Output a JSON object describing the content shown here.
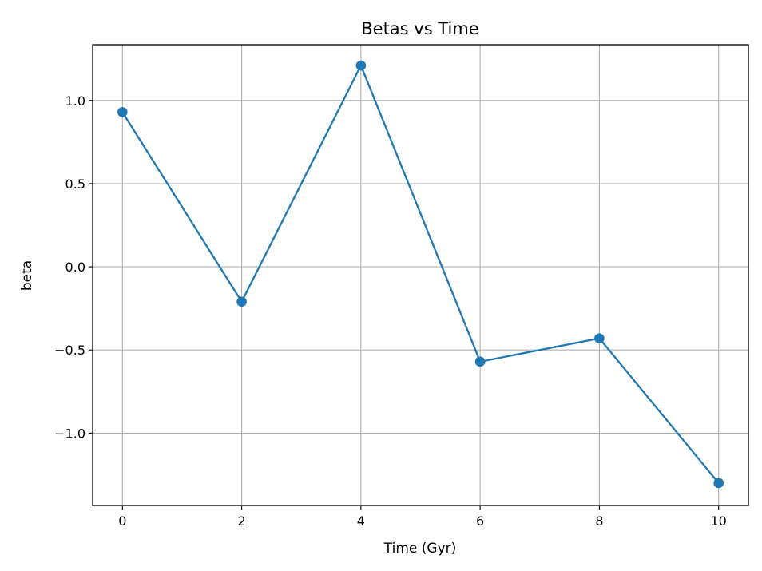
{
  "chart_data": {
    "type": "line",
    "title": "Betas vs Time",
    "xlabel": "Time (Gyr)",
    "ylabel": "beta",
    "grid": true,
    "xlim": [
      -0.5,
      10.5
    ],
    "ylim": [
      -1.435,
      1.335
    ],
    "x_ticks": [
      0,
      2,
      4,
      6,
      8,
      10
    ],
    "x_tick_labels": [
      "0",
      "2",
      "4",
      "6",
      "8",
      "10"
    ],
    "y_ticks": [
      -1.0,
      -0.5,
      0.0,
      0.5,
      1.0
    ],
    "y_tick_labels": [
      "−1.0",
      "−0.5",
      "0.0",
      "0.5",
      "1.0"
    ],
    "series": [
      {
        "color": "#1f77b4",
        "marker": "circle",
        "x": [
          0,
          2,
          4,
          6,
          8,
          10
        ],
        "y": [
          0.93,
          -0.21,
          1.21,
          -0.57,
          -0.43,
          -1.3
        ]
      }
    ]
  }
}
